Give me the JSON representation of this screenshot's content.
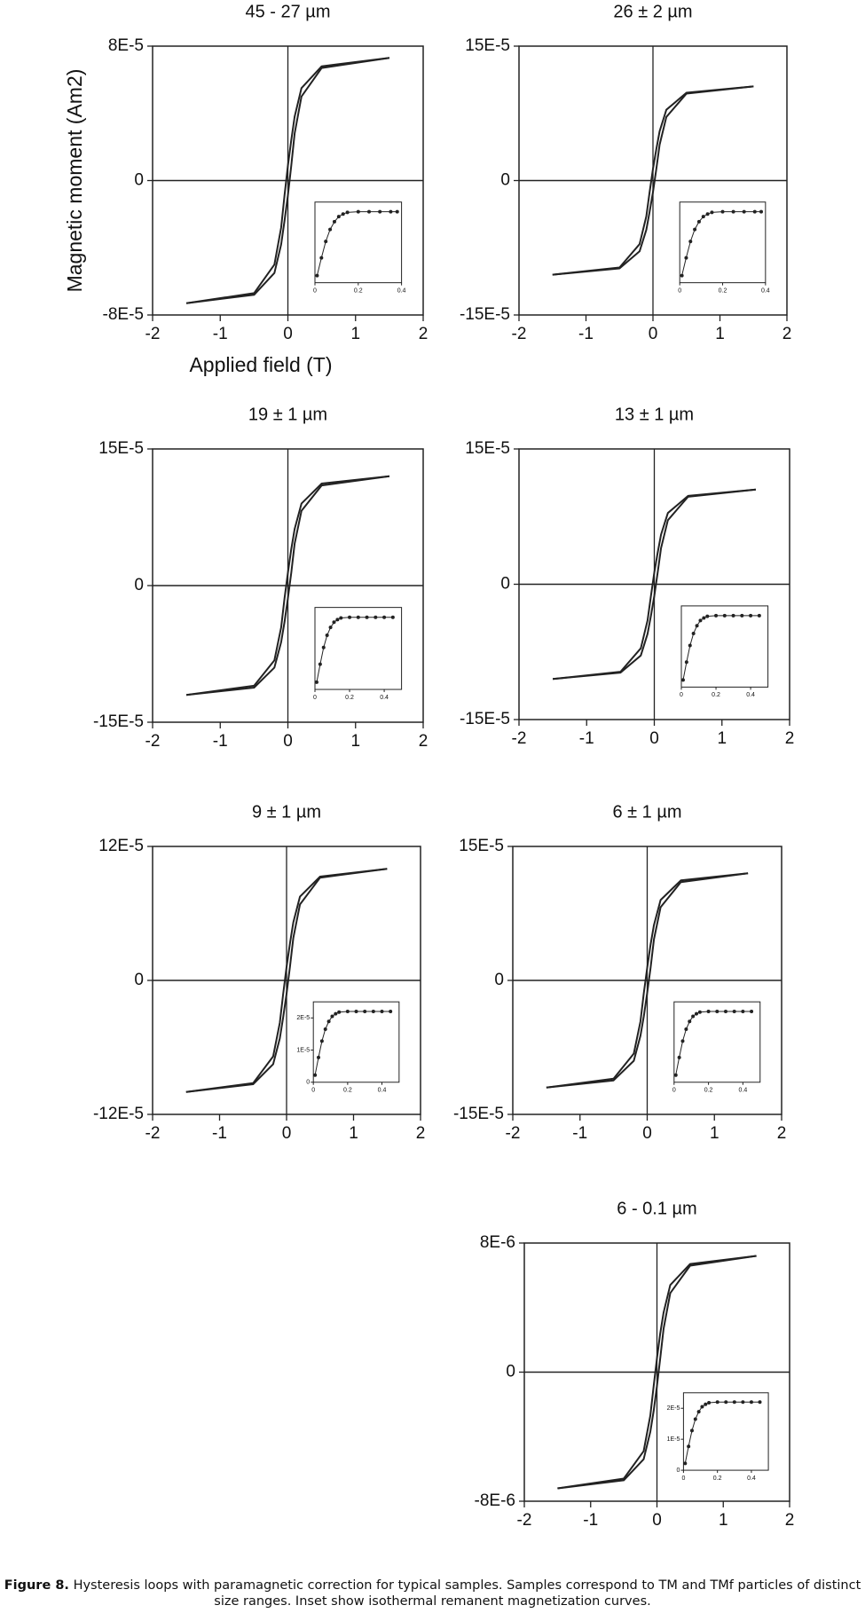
{
  "chart_data": [
    {
      "type": "line",
      "title": "45 - 27 µm",
      "ylabel": "Magnetic moment (Am2)",
      "xlabel": "Applied field (T)",
      "xlim": [
        -2,
        2
      ],
      "xticks": [
        -2,
        -1,
        0,
        1,
        2
      ],
      "ylim": [
        -8e-05,
        8e-05
      ],
      "yticks": [
        {
          "value": -8e-05,
          "label": "-8E-5"
        },
        0,
        {
          "value": 8e-05,
          "label": "8E-5"
        }
      ],
      "x": [
        -1.5,
        -0.5,
        -0.2,
        -0.1,
        -0.05,
        0,
        0.05,
        0.1,
        0.2,
        0.5,
        1.5
      ],
      "series": [
        {
          "color": "#222222",
          "values": [
            -7.3e-05,
            -6.8e-05,
            -5.5e-05,
            -3.8e-05,
            -2.4e-05,
            -8.8e-06,
            8.8e-06,
            2.8e-05,
            5e-05,
            6.7e-05,
            7.3e-05
          ]
        },
        {
          "color": "#222222",
          "values": [
            -7.3e-05,
            -6.7e-05,
            -5e-05,
            -2.8e-05,
            -8.8e-06,
            8.8e-06,
            2.4e-05,
            3.8e-05,
            5.5e-05,
            6.8e-05,
            7.3e-05
          ]
        }
      ],
      "inset": {
        "xlim": [
          0,
          0.4
        ],
        "xticks": [
          0,
          0.2,
          0.4
        ],
        "ylim": [
          0,
          2.5e-05
        ],
        "x": [
          0.01,
          0.03,
          0.05,
          0.07,
          0.09,
          0.11,
          0.13,
          0.15,
          0.2,
          0.25,
          0.3,
          0.35,
          0.38
        ],
        "values": [
          2.2e-06,
          7.7e-06,
          1.28e-05,
          1.65e-05,
          1.89e-05,
          2.05e-05,
          2.13e-05,
          2.18e-05,
          2.2e-05,
          2.2e-05,
          2.2e-05,
          2.2e-05,
          2.2e-05
        ]
      }
    },
    {
      "type": "line",
      "title": "26 ± 2 µm",
      "xlim": [
        -2,
        2
      ],
      "xticks": [
        -2,
        -1,
        0,
        1,
        2
      ],
      "ylim": [
        -0.00015,
        0.00015
      ],
      "yticks": [
        {
          "value": -0.00015,
          "label": "-15E-5"
        },
        0,
        {
          "value": 0.00015,
          "label": "15E-5"
        }
      ],
      "x": [
        -1.5,
        -0.5,
        -0.2,
        -0.1,
        -0.05,
        0,
        0.05,
        0.1,
        0.2,
        0.5,
        1.5
      ],
      "series": [
        {
          "color": "#222222",
          "values": [
            -0.000105,
            -9.8e-05,
            -7.9e-05,
            -5.5e-05,
            -3.5e-05,
            -1.3e-05,
            1.3e-05,
            4e-05,
            7.1e-05,
            9.7e-05,
            0.000105
          ]
        },
        {
          "color": "#222222",
          "values": [
            -0.000105,
            -9.7e-05,
            -7.1e-05,
            -4e-05,
            -1.3e-05,
            1.3e-05,
            3.5e-05,
            5.5e-05,
            7.9e-05,
            9.8e-05,
            0.000105
          ]
        }
      ],
      "inset": {
        "xlim": [
          0,
          0.4
        ],
        "xticks": [
          0,
          0.2,
          0.4
        ],
        "ylim": [
          0,
          2.5e-05
        ],
        "x": [
          0.01,
          0.03,
          0.05,
          0.07,
          0.09,
          0.11,
          0.13,
          0.15,
          0.2,
          0.25,
          0.3,
          0.35,
          0.38
        ],
        "values": [
          2.2e-06,
          7.7e-06,
          1.28e-05,
          1.65e-05,
          1.89e-05,
          2.05e-05,
          2.13e-05,
          2.18e-05,
          2.2e-05,
          2.2e-05,
          2.2e-05,
          2.2e-05,
          2.2e-05
        ]
      }
    },
    {
      "type": "line",
      "title": "19 ± 1 µm",
      "xlim": [
        -2,
        2
      ],
      "xticks": [
        -2,
        -1,
        0,
        1,
        2
      ],
      "ylim": [
        -0.00015,
        0.00015
      ],
      "yticks": [
        {
          "value": -0.00015,
          "label": "-15E-5"
        },
        0,
        {
          "value": 0.00015,
          "label": "15E-5"
        }
      ],
      "x": [
        -1.5,
        -0.5,
        -0.2,
        -0.1,
        -0.05,
        0,
        0.05,
        0.1,
        0.2,
        0.5,
        1.5
      ],
      "series": [
        {
          "color": "#222222",
          "values": [
            -0.00012,
            -0.000112,
            -9e-05,
            -6.2e-05,
            -4e-05,
            -1.4e-05,
            1.4e-05,
            4.6e-05,
            8.2e-05,
            0.00011,
            0.00012
          ]
        },
        {
          "color": "#222222",
          "values": [
            -0.00012,
            -0.00011,
            -8.2e-05,
            -4.6e-05,
            -1.4e-05,
            1.4e-05,
            4e-05,
            6.2e-05,
            9e-05,
            0.000112,
            0.00012
          ]
        }
      ],
      "inset": {
        "xlim": [
          0,
          0.5
        ],
        "xticks": [
          0,
          0.2,
          0.4
        ],
        "ylim": [
          0,
          2.5e-05
        ],
        "x": [
          0.01,
          0.03,
          0.05,
          0.07,
          0.09,
          0.11,
          0.13,
          0.15,
          0.2,
          0.25,
          0.3,
          0.35,
          0.4,
          0.45
        ],
        "values": [
          2.2e-06,
          7.7e-06,
          1.28e-05,
          1.65e-05,
          1.89e-05,
          2.05e-05,
          2.13e-05,
          2.18e-05,
          2.2e-05,
          2.2e-05,
          2.2e-05,
          2.2e-05,
          2.2e-05,
          2.2e-05
        ]
      }
    },
    {
      "type": "line",
      "title": "13 ± 1 µm",
      "xlim": [
        -2,
        2
      ],
      "xticks": [
        -2,
        -1,
        0,
        1,
        2
      ],
      "ylim": [
        -0.00015,
        0.00015
      ],
      "yticks": [
        {
          "value": -0.00015,
          "label": "-15E-5"
        },
        0,
        {
          "value": 0.00015,
          "label": "15E-5"
        }
      ],
      "x": [
        -1.5,
        -0.5,
        -0.2,
        -0.1,
        -0.05,
        0,
        0.05,
        0.1,
        0.2,
        0.5,
        1.5
      ],
      "series": [
        {
          "color": "#222222",
          "values": [
            -0.000105,
            -9.8e-05,
            -7.9e-05,
            -5.5e-05,
            -3.5e-05,
            -1.3e-05,
            1.3e-05,
            4e-05,
            7.1e-05,
            9.7e-05,
            0.000105
          ]
        },
        {
          "color": "#222222",
          "values": [
            -0.000105,
            -9.7e-05,
            -7.1e-05,
            -4e-05,
            -1.3e-05,
            1.3e-05,
            3.5e-05,
            5.5e-05,
            7.9e-05,
            9.8e-05,
            0.000105
          ]
        }
      ],
      "inset": {
        "xlim": [
          0,
          0.5
        ],
        "xticks": [
          0,
          0.2,
          0.4
        ],
        "ylim": [
          0,
          2.5e-05
        ],
        "x": [
          0.01,
          0.03,
          0.05,
          0.07,
          0.09,
          0.11,
          0.13,
          0.15,
          0.2,
          0.25,
          0.3,
          0.35,
          0.4,
          0.45
        ],
        "values": [
          2.2e-06,
          7.7e-06,
          1.28e-05,
          1.65e-05,
          1.89e-05,
          2.05e-05,
          2.13e-05,
          2.18e-05,
          2.2e-05,
          2.2e-05,
          2.2e-05,
          2.2e-05,
          2.2e-05,
          2.2e-05
        ]
      }
    },
    {
      "type": "line",
      "title": "9 ± 1 µm",
      "xlim": [
        -2,
        2
      ],
      "xticks": [
        -2,
        -1,
        0,
        1,
        2
      ],
      "ylim": [
        -0.00012,
        0.00012
      ],
      "yticks": [
        {
          "value": -0.00012,
          "label": "-12E-5"
        },
        0,
        {
          "value": 0.00012,
          "label": "12E-5"
        }
      ],
      "x": [
        -1.5,
        -0.5,
        -0.2,
        -0.1,
        -0.05,
        0,
        0.05,
        0.1,
        0.2,
        0.5,
        1.5
      ],
      "series": [
        {
          "color": "#222222",
          "values": [
            -0.0001,
            -9.3e-05,
            -7.5e-05,
            -5.2e-05,
            -3.3e-05,
            -1.2e-05,
            1.2e-05,
            3.8e-05,
            6.8e-05,
            9.2e-05,
            0.0001
          ]
        },
        {
          "color": "#222222",
          "values": [
            -0.0001,
            -9.2e-05,
            -6.8e-05,
            -3.8e-05,
            -1.2e-05,
            1.2e-05,
            3.3e-05,
            5.2e-05,
            7.5e-05,
            9.3e-05,
            0.0001
          ]
        }
      ],
      "inset": {
        "xlim": [
          0,
          0.5
        ],
        "xticks": [
          0,
          0.2,
          0.4
        ],
        "ylim": [
          0,
          2.5e-05
        ],
        "yticks": [
          0,
          {
            "value": 1e-05,
            "label": "1E-5"
          },
          {
            "value": 2e-05,
            "label": "2E-5"
          }
        ],
        "x": [
          0.01,
          0.03,
          0.05,
          0.07,
          0.09,
          0.11,
          0.13,
          0.15,
          0.2,
          0.25,
          0.3,
          0.35,
          0.4,
          0.45
        ],
        "values": [
          2.2e-06,
          7.7e-06,
          1.28e-05,
          1.65e-05,
          1.89e-05,
          2.05e-05,
          2.13e-05,
          2.18e-05,
          2.2e-05,
          2.2e-05,
          2.2e-05,
          2.2e-05,
          2.2e-05,
          2.2e-05
        ]
      }
    },
    {
      "type": "line",
      "title": "6 ± 1 µm",
      "xlim": [
        -2,
        2
      ],
      "xticks": [
        -2,
        -1,
        0,
        1,
        2
      ],
      "ylim": [
        -0.00015,
        0.00015
      ],
      "yticks": [
        {
          "value": -0.00015,
          "label": "-15E-5"
        },
        0,
        {
          "value": 0.00015,
          "label": "15E-5"
        }
      ],
      "x": [
        -1.5,
        -0.5,
        -0.2,
        -0.1,
        -0.05,
        0,
        0.05,
        0.1,
        0.2,
        0.5,
        1.5
      ],
      "series": [
        {
          "color": "#222222",
          "values": [
            -0.00012,
            -0.000112,
            -9e-05,
            -6.2e-05,
            -4e-05,
            -1.4e-05,
            1.4e-05,
            4.6e-05,
            8.2e-05,
            0.00011,
            0.00012
          ]
        },
        {
          "color": "#222222",
          "values": [
            -0.00012,
            -0.00011,
            -8.2e-05,
            -4.6e-05,
            -1.4e-05,
            1.4e-05,
            4e-05,
            6.2e-05,
            9e-05,
            0.000112,
            0.00012
          ]
        }
      ],
      "inset": {
        "xlim": [
          0,
          0.5
        ],
        "xticks": [
          0,
          0.2,
          0.4
        ],
        "ylim": [
          0,
          2.5e-05
        ],
        "x": [
          0.01,
          0.03,
          0.05,
          0.07,
          0.09,
          0.11,
          0.13,
          0.15,
          0.2,
          0.25,
          0.3,
          0.35,
          0.4,
          0.45
        ],
        "values": [
          2.2e-06,
          7.7e-06,
          1.28e-05,
          1.65e-05,
          1.89e-05,
          2.05e-05,
          2.13e-05,
          2.18e-05,
          2.2e-05,
          2.2e-05,
          2.2e-05,
          2.2e-05,
          2.2e-05,
          2.2e-05
        ]
      }
    },
    {
      "type": "line",
      "title": "6 - 0.1 µm",
      "xlim": [
        -2,
        2
      ],
      "xticks": [
        -2,
        -1,
        0,
        1,
        2
      ],
      "ylim": [
        -8e-06,
        8e-06
      ],
      "yticks": [
        {
          "value": -8e-06,
          "label": "-8E-6"
        },
        0,
        {
          "value": 8e-06,
          "label": "8E-6"
        }
      ],
      "x": [
        -1.5,
        -0.5,
        -0.2,
        -0.1,
        -0.05,
        0,
        0.05,
        0.1,
        0.2,
        0.5,
        1.5
      ],
      "series": [
        {
          "color": "#222222",
          "values": [
            -7.2e-06,
            -6.7e-06,
            -5.4e-06,
            -3.7e-06,
            -2.4e-06,
            -8.6e-07,
            8.6e-07,
            2.7e-06,
            4.9e-06,
            6.6e-06,
            7.2e-06
          ]
        },
        {
          "color": "#222222",
          "values": [
            -7.2e-06,
            -6.6e-06,
            -4.9e-06,
            -2.7e-06,
            -8.6e-07,
            8.6e-07,
            2.4e-06,
            3.7e-06,
            5.4e-06,
            6.7e-06,
            7.2e-06
          ]
        }
      ],
      "inset": {
        "xlim": [
          0,
          0.5
        ],
        "xticks": [
          0,
          0.2,
          0.4
        ],
        "ylim": [
          0,
          2.5e-05
        ],
        "yticks": [
          0,
          {
            "value": 1e-05,
            "label": "1E-5"
          },
          {
            "value": 2e-05,
            "label": "2E-5"
          }
        ],
        "x": [
          0.01,
          0.03,
          0.05,
          0.07,
          0.09,
          0.11,
          0.13,
          0.15,
          0.2,
          0.25,
          0.3,
          0.35,
          0.4,
          0.45
        ],
        "values": [
          2.2e-06,
          7.7e-06,
          1.28e-05,
          1.65e-05,
          1.89e-05,
          2.05e-05,
          2.13e-05,
          2.18e-05,
          2.2e-05,
          2.2e-05,
          2.2e-05,
          2.2e-05,
          2.2e-05,
          2.2e-05
        ]
      }
    }
  ],
  "caption": {
    "label": "Figure 8.",
    "text": "Hysteresis loops with paramagnetic correction for typical samples. Samples correspond to TM and TMf particles of distinct size ranges. Inset show isothermal remanent magnetization curves."
  }
}
